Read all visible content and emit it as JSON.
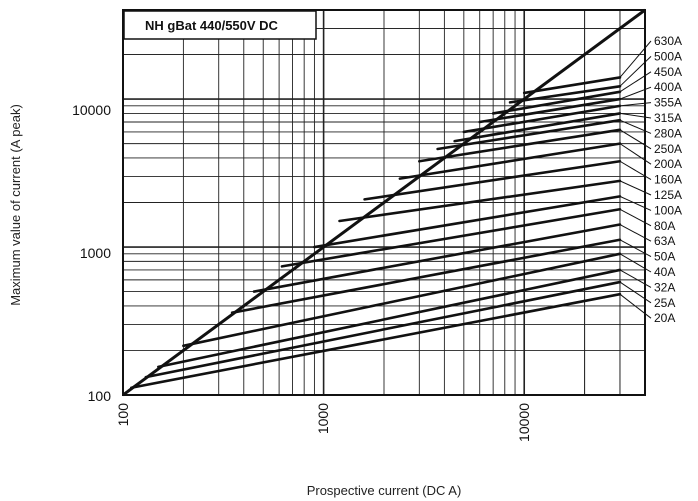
{
  "chart_data": {
    "type": "line",
    "title": "NH gBat 440/550V DC",
    "xlabel": "Prospective current (DC A)",
    "ylabel": "Maximum value of current (A peak)",
    "x_scale": "log",
    "y_scale": "log",
    "xlim": [
      100,
      40000
    ],
    "ylim": [
      100,
      40000
    ],
    "x_ticks": [
      "100",
      "1000",
      "10000"
    ],
    "y_ticks": [
      "100",
      "1000",
      "10000"
    ],
    "grid": true,
    "peak_line": {
      "x": [
        100,
        40000
      ],
      "y": [
        100,
        40000
      ]
    },
    "series": [
      {
        "name": "630A",
        "x": [
          10000,
          30000
        ],
        "y": [
          11000,
          14000
        ]
      },
      {
        "name": "500A",
        "x": [
          8500,
          30000
        ],
        "y": [
          9500,
          12200
        ]
      },
      {
        "name": "450A",
        "x": [
          7000,
          30000
        ],
        "y": [
          8000,
          11200
        ]
      },
      {
        "name": "400A",
        "x": [
          6000,
          30000
        ],
        "y": [
          7000,
          10000
        ]
      },
      {
        "name": "355A",
        "x": [
          5000,
          30000
        ],
        "y": [
          6000,
          9000
        ]
      },
      {
        "name": "315A",
        "x": [
          4500,
          30000
        ],
        "y": [
          5200,
          8000
        ]
      },
      {
        "name": "280A",
        "x": [
          3700,
          30000
        ],
        "y": [
          4600,
          7200
        ]
      },
      {
        "name": "250A",
        "x": [
          3000,
          30000
        ],
        "y": [
          3800,
          6200
        ]
      },
      {
        "name": "200A",
        "x": [
          2400,
          30000
        ],
        "y": [
          2900,
          5000
        ]
      },
      {
        "name": "160A",
        "x": [
          1600,
          30000
        ],
        "y": [
          2100,
          3800
        ]
      },
      {
        "name": "125A",
        "x": [
          1200,
          30000
        ],
        "y": [
          1500,
          2800
        ]
      },
      {
        "name": "100A",
        "x": [
          900,
          30000
        ],
        "y": [
          1000,
          2200
        ]
      },
      {
        "name": "80A",
        "x": [
          620,
          30000
        ],
        "y": [
          740,
          1800
        ]
      },
      {
        "name": "63A",
        "x": [
          450,
          30000
        ],
        "y": [
          500,
          1420
        ]
      },
      {
        "name": "50A",
        "x": [
          350,
          30000
        ],
        "y": [
          360,
          1120
        ]
      },
      {
        "name": "40A",
        "x": [
          200,
          30000
        ],
        "y": [
          215,
          900
        ]
      },
      {
        "name": "32A",
        "x": [
          150,
          30000
        ],
        "y": [
          155,
          700
        ]
      },
      {
        "name": "25A",
        "x": [
          130,
          30000
        ],
        "y": [
          132,
          580
        ]
      },
      {
        "name": "20A",
        "x": [
          110,
          30000
        ],
        "y": [
          112,
          480
        ]
      }
    ]
  }
}
